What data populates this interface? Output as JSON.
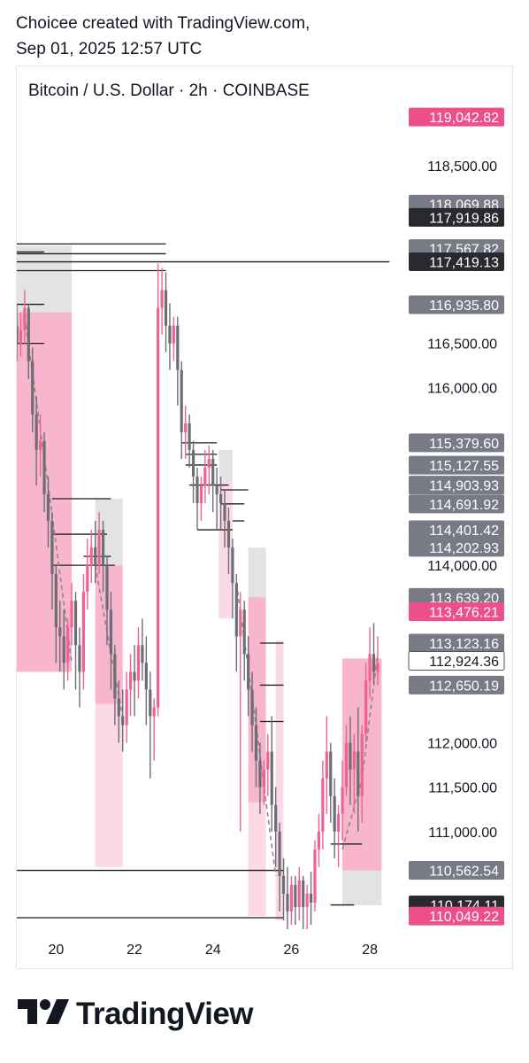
{
  "header": {
    "line1": "Choicee created with TradingView.com,",
    "line2": "Sep 01, 2025 12:57 UTC"
  },
  "chart_title": "Bitcoin / U.S. Dollar · 2h · COINBASE",
  "brand": "TradingView",
  "colors": {
    "bull": "#f06292",
    "bear": "#6d6d78",
    "zone_pink": "#f48fb1",
    "zone_light": "#f8bbd0",
    "zone_gray": "#cccccc",
    "tag_gray": "#787b86",
    "tag_dark": "#2a2a2e",
    "tag_pink": "#ec4f8a"
  },
  "chart_data": {
    "type": "candlestick",
    "x_tick_labels": [
      "20",
      "22",
      "24",
      "26",
      "28"
    ],
    "y_ticks": [
      118500,
      116500,
      116000,
      114000,
      112000,
      111500,
      111000
    ],
    "y_tick_labels": [
      "118,500.00",
      "116,500.00",
      "116,000.00",
      "114,000.00",
      "112,000.00",
      "111,500.00",
      "111,000.00"
    ],
    "ylim": [
      109890,
      119620
    ],
    "price_tags": [
      {
        "label": "119,042.82",
        "value": 119050,
        "style": "pink"
      },
      {
        "label": "118,069.88",
        "value": 118070,
        "style": "gray"
      },
      {
        "label": "117,919.86",
        "value": 117920,
        "style": "dark"
      },
      {
        "label": "117,567.82",
        "value": 117568,
        "style": "gray"
      },
      {
        "label": "117,419.13",
        "value": 117419,
        "style": "dark"
      },
      {
        "label": "116,935.80",
        "value": 116936,
        "style": "gray"
      },
      {
        "label": "115,379.60",
        "value": 115380,
        "style": "gray"
      },
      {
        "label": "115,127.55",
        "value": 115128,
        "style": "gray"
      },
      {
        "label": "114,903.93",
        "value": 114904,
        "style": "gray"
      },
      {
        "label": "114,691.92",
        "value": 114692,
        "style": "gray"
      },
      {
        "label": "114,401.42",
        "value": 114401,
        "style": "gray"
      },
      {
        "label": "114,202.93",
        "value": 114203,
        "style": "gray"
      },
      {
        "label": "113,639.20",
        "value": 113639,
        "style": "gray"
      },
      {
        "label": "113,476.21",
        "value": 113476,
        "style": "pink"
      },
      {
        "label": "113,123.16",
        "value": 113123,
        "style": "gray"
      },
      {
        "label": "112,924.36",
        "value": 112924,
        "style": "outline"
      },
      {
        "label": "112,650.19",
        "value": 112650,
        "style": "gray"
      },
      {
        "label": "110,562.54",
        "value": 110563,
        "style": "gray"
      },
      {
        "label": "110,174.11",
        "value": 110174,
        "style": "dark"
      },
      {
        "label": "110,049.22",
        "value": 110049,
        "style": "pink"
      }
    ],
    "candles": [
      {
        "t": 19.0,
        "o": 116700,
        "h": 116950,
        "c": 116500,
        "l": 116300
      },
      {
        "t": 19.1,
        "o": 116500,
        "h": 116850,
        "c": 116650,
        "l": 116350
      },
      {
        "t": 19.2,
        "o": 116650,
        "h": 117100,
        "c": 116900,
        "l": 116500
      },
      {
        "t": 19.3,
        "o": 116900,
        "h": 116950,
        "c": 116300,
        "l": 116100
      },
      {
        "t": 19.4,
        "o": 116300,
        "h": 116450,
        "c": 115700,
        "l": 115500
      },
      {
        "t": 19.5,
        "o": 115700,
        "h": 115900,
        "c": 115300,
        "l": 114900
      },
      {
        "t": 19.6,
        "o": 115300,
        "h": 115700,
        "c": 115400,
        "l": 115000
      },
      {
        "t": 19.7,
        "o": 115400,
        "h": 115500,
        "c": 114800,
        "l": 114600
      },
      {
        "t": 19.8,
        "o": 114800,
        "h": 115000,
        "c": 114500,
        "l": 114200
      },
      {
        "t": 19.9,
        "o": 114500,
        "h": 114600,
        "c": 113900,
        "l": 113500
      },
      {
        "t": 20.0,
        "o": 113900,
        "h": 114000,
        "c": 113300,
        "l": 112900
      },
      {
        "t": 20.1,
        "o": 113300,
        "h": 113600,
        "c": 113200,
        "l": 112800
      },
      {
        "t": 20.2,
        "o": 113200,
        "h": 113500,
        "c": 112900,
        "l": 112600
      },
      {
        "t": 20.3,
        "o": 112900,
        "h": 113400,
        "c": 113300,
        "l": 112700
      },
      {
        "t": 20.4,
        "o": 113300,
        "h": 113800,
        "c": 113600,
        "l": 113100
      },
      {
        "t": 20.5,
        "o": 113600,
        "h": 113700,
        "c": 113100,
        "l": 112600
      },
      {
        "t": 20.6,
        "o": 113100,
        "h": 113300,
        "c": 112800,
        "l": 112400
      },
      {
        "t": 20.7,
        "o": 112800,
        "h": 113900,
        "c": 113700,
        "l": 112600
      },
      {
        "t": 20.8,
        "o": 113700,
        "h": 114300,
        "c": 114000,
        "l": 113500
      },
      {
        "t": 20.9,
        "o": 114000,
        "h": 114400,
        "c": 114200,
        "l": 113800
      },
      {
        "t": 21.0,
        "o": 114200,
        "h": 114500,
        "c": 114000,
        "l": 113800
      },
      {
        "t": 21.1,
        "o": 114000,
        "h": 114600,
        "c": 114400,
        "l": 113900
      },
      {
        "t": 21.2,
        "o": 114400,
        "h": 114500,
        "c": 114000,
        "l": 113700
      },
      {
        "t": 21.3,
        "o": 114000,
        "h": 114100,
        "c": 113500,
        "l": 113100
      },
      {
        "t": 21.4,
        "o": 113500,
        "h": 113700,
        "c": 113000,
        "l": 112600
      },
      {
        "t": 21.5,
        "o": 113000,
        "h": 113100,
        "c": 112500,
        "l": 112200
      },
      {
        "t": 21.6,
        "o": 112500,
        "h": 112700,
        "c": 112300,
        "l": 112000
      },
      {
        "t": 21.7,
        "o": 112300,
        "h": 112600,
        "c": 112200,
        "l": 111900
      },
      {
        "t": 21.8,
        "o": 112200,
        "h": 112800,
        "c": 112600,
        "l": 112000
      },
      {
        "t": 21.9,
        "o": 112600,
        "h": 113000,
        "c": 112800,
        "l": 112300
      },
      {
        "t": 22.0,
        "o": 112800,
        "h": 113100,
        "c": 112700,
        "l": 112300
      },
      {
        "t": 22.1,
        "o": 112700,
        "h": 113300,
        "c": 113100,
        "l": 112500
      },
      {
        "t": 22.2,
        "o": 113100,
        "h": 113400,
        "c": 112900,
        "l": 112700
      },
      {
        "t": 22.3,
        "o": 112900,
        "h": 113200,
        "c": 112600,
        "l": 112200
      },
      {
        "t": 22.4,
        "o": 112600,
        "h": 112800,
        "c": 112300,
        "l": 111600
      },
      {
        "t": 22.5,
        "o": 112300,
        "h": 112500,
        "c": 112400,
        "l": 111800
      },
      {
        "t": 22.6,
        "o": 112400,
        "h": 117400,
        "c": 116900,
        "l": 112300
      },
      {
        "t": 22.7,
        "o": 116900,
        "h": 117350,
        "c": 117100,
        "l": 116600
      },
      {
        "t": 22.8,
        "o": 117100,
        "h": 117300,
        "c": 116700,
        "l": 116400
      },
      {
        "t": 22.9,
        "o": 116700,
        "h": 116950,
        "c": 116500,
        "l": 116200
      },
      {
        "t": 23.0,
        "o": 116500,
        "h": 116800,
        "c": 116700,
        "l": 116300
      },
      {
        "t": 23.1,
        "o": 116700,
        "h": 116800,
        "c": 116200,
        "l": 115800
      },
      {
        "t": 23.2,
        "o": 116200,
        "h": 116300,
        "c": 115500,
        "l": 115200
      },
      {
        "t": 23.3,
        "o": 115500,
        "h": 115800,
        "c": 115600,
        "l": 115200
      },
      {
        "t": 23.4,
        "o": 115600,
        "h": 115700,
        "c": 115300,
        "l": 115100
      },
      {
        "t": 23.5,
        "o": 115300,
        "h": 115400,
        "c": 115000,
        "l": 114700
      },
      {
        "t": 23.6,
        "o": 115000,
        "h": 115100,
        "c": 114700,
        "l": 114400
      },
      {
        "t": 23.7,
        "o": 114700,
        "h": 115000,
        "c": 114900,
        "l": 114500
      },
      {
        "t": 23.8,
        "o": 114900,
        "h": 115300,
        "c": 115100,
        "l": 114700
      },
      {
        "t": 23.9,
        "o": 115100,
        "h": 115350,
        "c": 115200,
        "l": 114800
      },
      {
        "t": 24.0,
        "o": 115200,
        "h": 115300,
        "c": 114900,
        "l": 114600
      },
      {
        "t": 24.1,
        "o": 114900,
        "h": 115100,
        "c": 114800,
        "l": 114400
      },
      {
        "t": 24.2,
        "o": 114800,
        "h": 115000,
        "c": 114700,
        "l": 114400
      },
      {
        "t": 24.3,
        "o": 114700,
        "h": 114850,
        "c": 114500,
        "l": 114200
      },
      {
        "t": 24.4,
        "o": 114500,
        "h": 114650,
        "c": 114200,
        "l": 113900
      },
      {
        "t": 24.5,
        "o": 114200,
        "h": 114300,
        "c": 113800,
        "l": 113400
      },
      {
        "t": 24.6,
        "o": 113800,
        "h": 113900,
        "c": 113200,
        "l": 112800
      },
      {
        "t": 24.7,
        "o": 113200,
        "h": 113700,
        "c": 113500,
        "l": 111000
      },
      {
        "t": 24.8,
        "o": 113500,
        "h": 113600,
        "c": 113000,
        "l": 112700
      },
      {
        "t": 24.9,
        "o": 113000,
        "h": 113200,
        "c": 112600,
        "l": 112300
      },
      {
        "t": 25.0,
        "o": 112600,
        "h": 112800,
        "c": 112200,
        "l": 111900
      },
      {
        "t": 25.1,
        "o": 112200,
        "h": 112400,
        "c": 111800,
        "l": 111500
      },
      {
        "t": 25.2,
        "o": 111800,
        "h": 112000,
        "c": 111500,
        "l": 111200
      },
      {
        "t": 25.3,
        "o": 111500,
        "h": 111800,
        "c": 111700,
        "l": 111300
      },
      {
        "t": 25.4,
        "o": 111700,
        "h": 112100,
        "c": 111900,
        "l": 111400
      },
      {
        "t": 25.5,
        "o": 111900,
        "h": 112300,
        "c": 111300,
        "l": 111000
      },
      {
        "t": 25.6,
        "o": 111300,
        "h": 111500,
        "c": 111000,
        "l": 110600
      },
      {
        "t": 25.7,
        "o": 111000,
        "h": 111100,
        "c": 110500,
        "l": 110100
      },
      {
        "t": 25.8,
        "o": 110500,
        "h": 110700,
        "c": 110300,
        "l": 110000
      },
      {
        "t": 25.9,
        "o": 110300,
        "h": 110600,
        "c": 110100,
        "l": 109900
      },
      {
        "t": 26.0,
        "o": 110100,
        "h": 110500,
        "c": 110400,
        "l": 109950
      },
      {
        "t": 26.1,
        "o": 110400,
        "h": 110500,
        "c": 110150,
        "l": 109950
      },
      {
        "t": 26.2,
        "o": 110150,
        "h": 110600,
        "c": 110450,
        "l": 110000
      },
      {
        "t": 26.3,
        "o": 110450,
        "h": 110500,
        "c": 110150,
        "l": 109900
      },
      {
        "t": 26.4,
        "o": 110150,
        "h": 110400,
        "c": 110300,
        "l": 109900
      },
      {
        "t": 26.5,
        "o": 110300,
        "h": 110550,
        "c": 110200,
        "l": 109950
      },
      {
        "t": 26.6,
        "o": 110200,
        "h": 110900,
        "c": 110800,
        "l": 110100
      },
      {
        "t": 26.7,
        "o": 110800,
        "h": 111200,
        "c": 111000,
        "l": 110600
      },
      {
        "t": 26.8,
        "o": 111000,
        "h": 111800,
        "c": 111600,
        "l": 110800
      },
      {
        "t": 26.9,
        "o": 111600,
        "h": 112300,
        "c": 111900,
        "l": 111200
      },
      {
        "t": 27.0,
        "o": 111900,
        "h": 112000,
        "c": 111400,
        "l": 111100
      },
      {
        "t": 27.1,
        "o": 111400,
        "h": 111600,
        "c": 111000,
        "l": 110700
      },
      {
        "t": 27.2,
        "o": 111000,
        "h": 111300,
        "c": 111200,
        "l": 110600
      },
      {
        "t": 27.3,
        "o": 111200,
        "h": 111800,
        "c": 111500,
        "l": 110900
      },
      {
        "t": 27.4,
        "o": 111500,
        "h": 112200,
        "c": 112000,
        "l": 111400
      },
      {
        "t": 27.5,
        "o": 112000,
        "h": 112300,
        "c": 111700,
        "l": 111300
      },
      {
        "t": 27.6,
        "o": 111700,
        "h": 112100,
        "c": 111900,
        "l": 111200
      },
      {
        "t": 27.7,
        "o": 111900,
        "h": 112400,
        "c": 111400,
        "l": 111000
      },
      {
        "t": 27.8,
        "o": 111400,
        "h": 112200,
        "c": 112100,
        "l": 111100
      },
      {
        "t": 27.9,
        "o": 112100,
        "h": 112900,
        "c": 112700,
        "l": 112000
      },
      {
        "t": 28.0,
        "o": 112700,
        "h": 113300,
        "c": 113000,
        "l": 112500
      },
      {
        "t": 28.1,
        "o": 113000,
        "h": 113350,
        "c": 112800,
        "l": 112650
      },
      {
        "t": 28.2,
        "o": 112800,
        "h": 113200,
        "c": 112900,
        "l": 112650
      }
    ],
    "zones": [
      {
        "t0": 19.0,
        "t1": 20.4,
        "top": 116850,
        "bottom": 112800,
        "style": "zone_pink"
      },
      {
        "t0": 19.0,
        "t1": 20.4,
        "top": 117600,
        "bottom": 116850,
        "style": "zone_gray"
      },
      {
        "t0": 21.0,
        "t1": 21.7,
        "top": 114750,
        "bottom": 114000,
        "style": "zone_gray"
      },
      {
        "t0": 21.0,
        "t1": 21.7,
        "top": 114000,
        "bottom": 112440,
        "style": "zone_pink"
      },
      {
        "t0": 21.0,
        "t1": 21.7,
        "top": 112440,
        "bottom": 110600,
        "style": "zone_light"
      },
      {
        "t0": 24.15,
        "t1": 24.5,
        "top": 115300,
        "bottom": 114950,
        "style": "zone_gray"
      },
      {
        "t0": 24.15,
        "t1": 24.5,
        "top": 114950,
        "bottom": 113400,
        "style": "zone_light"
      },
      {
        "t0": 24.9,
        "t1": 25.35,
        "top": 114200,
        "bottom": 113640,
        "style": "zone_gray"
      },
      {
        "t0": 24.9,
        "t1": 25.35,
        "top": 113640,
        "bottom": 111330,
        "style": "zone_pink"
      },
      {
        "t0": 24.9,
        "t1": 25.35,
        "top": 111330,
        "bottom": 110050,
        "style": "zone_light"
      },
      {
        "t0": 25.6,
        "t1": 25.8,
        "top": 113150,
        "bottom": 110000,
        "style": "zone_light"
      },
      {
        "t0": 27.3,
        "t1": 28.3,
        "top": 112950,
        "bottom": 110560,
        "style": "zone_pink"
      },
      {
        "t0": 27.3,
        "t1": 28.3,
        "top": 110560,
        "bottom": 110170,
        "style": "zone_gray"
      }
    ],
    "levels": [
      {
        "t0": 19.0,
        "t1": 22.8,
        "v": 117620
      },
      {
        "t0": 19.0,
        "t1": 22.8,
        "v": 117510
      },
      {
        "t0": 19.0,
        "t1": 19.7,
        "v": 117530
      },
      {
        "t0": 19.0,
        "t1": 22.8,
        "v": 117419
      },
      {
        "t0": 22.8,
        "t1": 28.5,
        "v": 117419
      },
      {
        "t0": 19.0,
        "t1": 22.8,
        "v": 117320
      },
      {
        "t0": 19.0,
        "t1": 19.7,
        "v": 116940
      },
      {
        "t0": 19.0,
        "t1": 19.7,
        "v": 116500
      },
      {
        "t0": 23.2,
        "t1": 24.1,
        "v": 115380
      },
      {
        "t0": 23.3,
        "t1": 24.1,
        "v": 115250
      },
      {
        "t0": 23.3,
        "t1": 24.1,
        "v": 115130
      },
      {
        "t0": 23.4,
        "t1": 24.4,
        "v": 114904
      },
      {
        "t0": 24.2,
        "t1": 24.9,
        "v": 114850
      },
      {
        "t0": 24.2,
        "t1": 24.8,
        "v": 114692
      },
      {
        "t0": 23.6,
        "t1": 24.5,
        "v": 114400
      },
      {
        "t0": 24.5,
        "t1": 24.8,
        "v": 114500
      },
      {
        "t0": 19.9,
        "t1": 21.4,
        "v": 114750
      },
      {
        "t0": 19.9,
        "t1": 21.3,
        "v": 114350
      },
      {
        "t0": 20.7,
        "t1": 21.4,
        "v": 114100
      },
      {
        "t0": 19.9,
        "t1": 21.5,
        "v": 114000
      },
      {
        "t0": 25.2,
        "t1": 25.8,
        "v": 113123
      },
      {
        "t0": 25.2,
        "t1": 25.8,
        "v": 112650
      },
      {
        "t0": 25.2,
        "t1": 25.8,
        "v": 112240
      },
      {
        "t0": 19.0,
        "t1": 25.8,
        "v": 110563
      },
      {
        "t0": 27.0,
        "t1": 27.8,
        "v": 110860
      },
      {
        "t0": 27.0,
        "t1": 27.6,
        "v": 110174
      },
      {
        "t0": 19.0,
        "t1": 25.8,
        "v": 110030
      }
    ],
    "projections": [
      [
        [
          19.2,
          116800
        ],
        [
          19.8,
          114900
        ],
        [
          20.4,
          112900
        ]
      ],
      [
        [
          21.0,
          114000
        ],
        [
          21.4,
          113000
        ],
        [
          21.7,
          112300
        ]
      ],
      [
        [
          24.6,
          113800
        ],
        [
          25.1,
          112200
        ],
        [
          25.6,
          110500
        ]
      ],
      [
        [
          27.3,
          110800
        ],
        [
          27.8,
          111600
        ],
        [
          28.2,
          113000
        ]
      ]
    ]
  }
}
